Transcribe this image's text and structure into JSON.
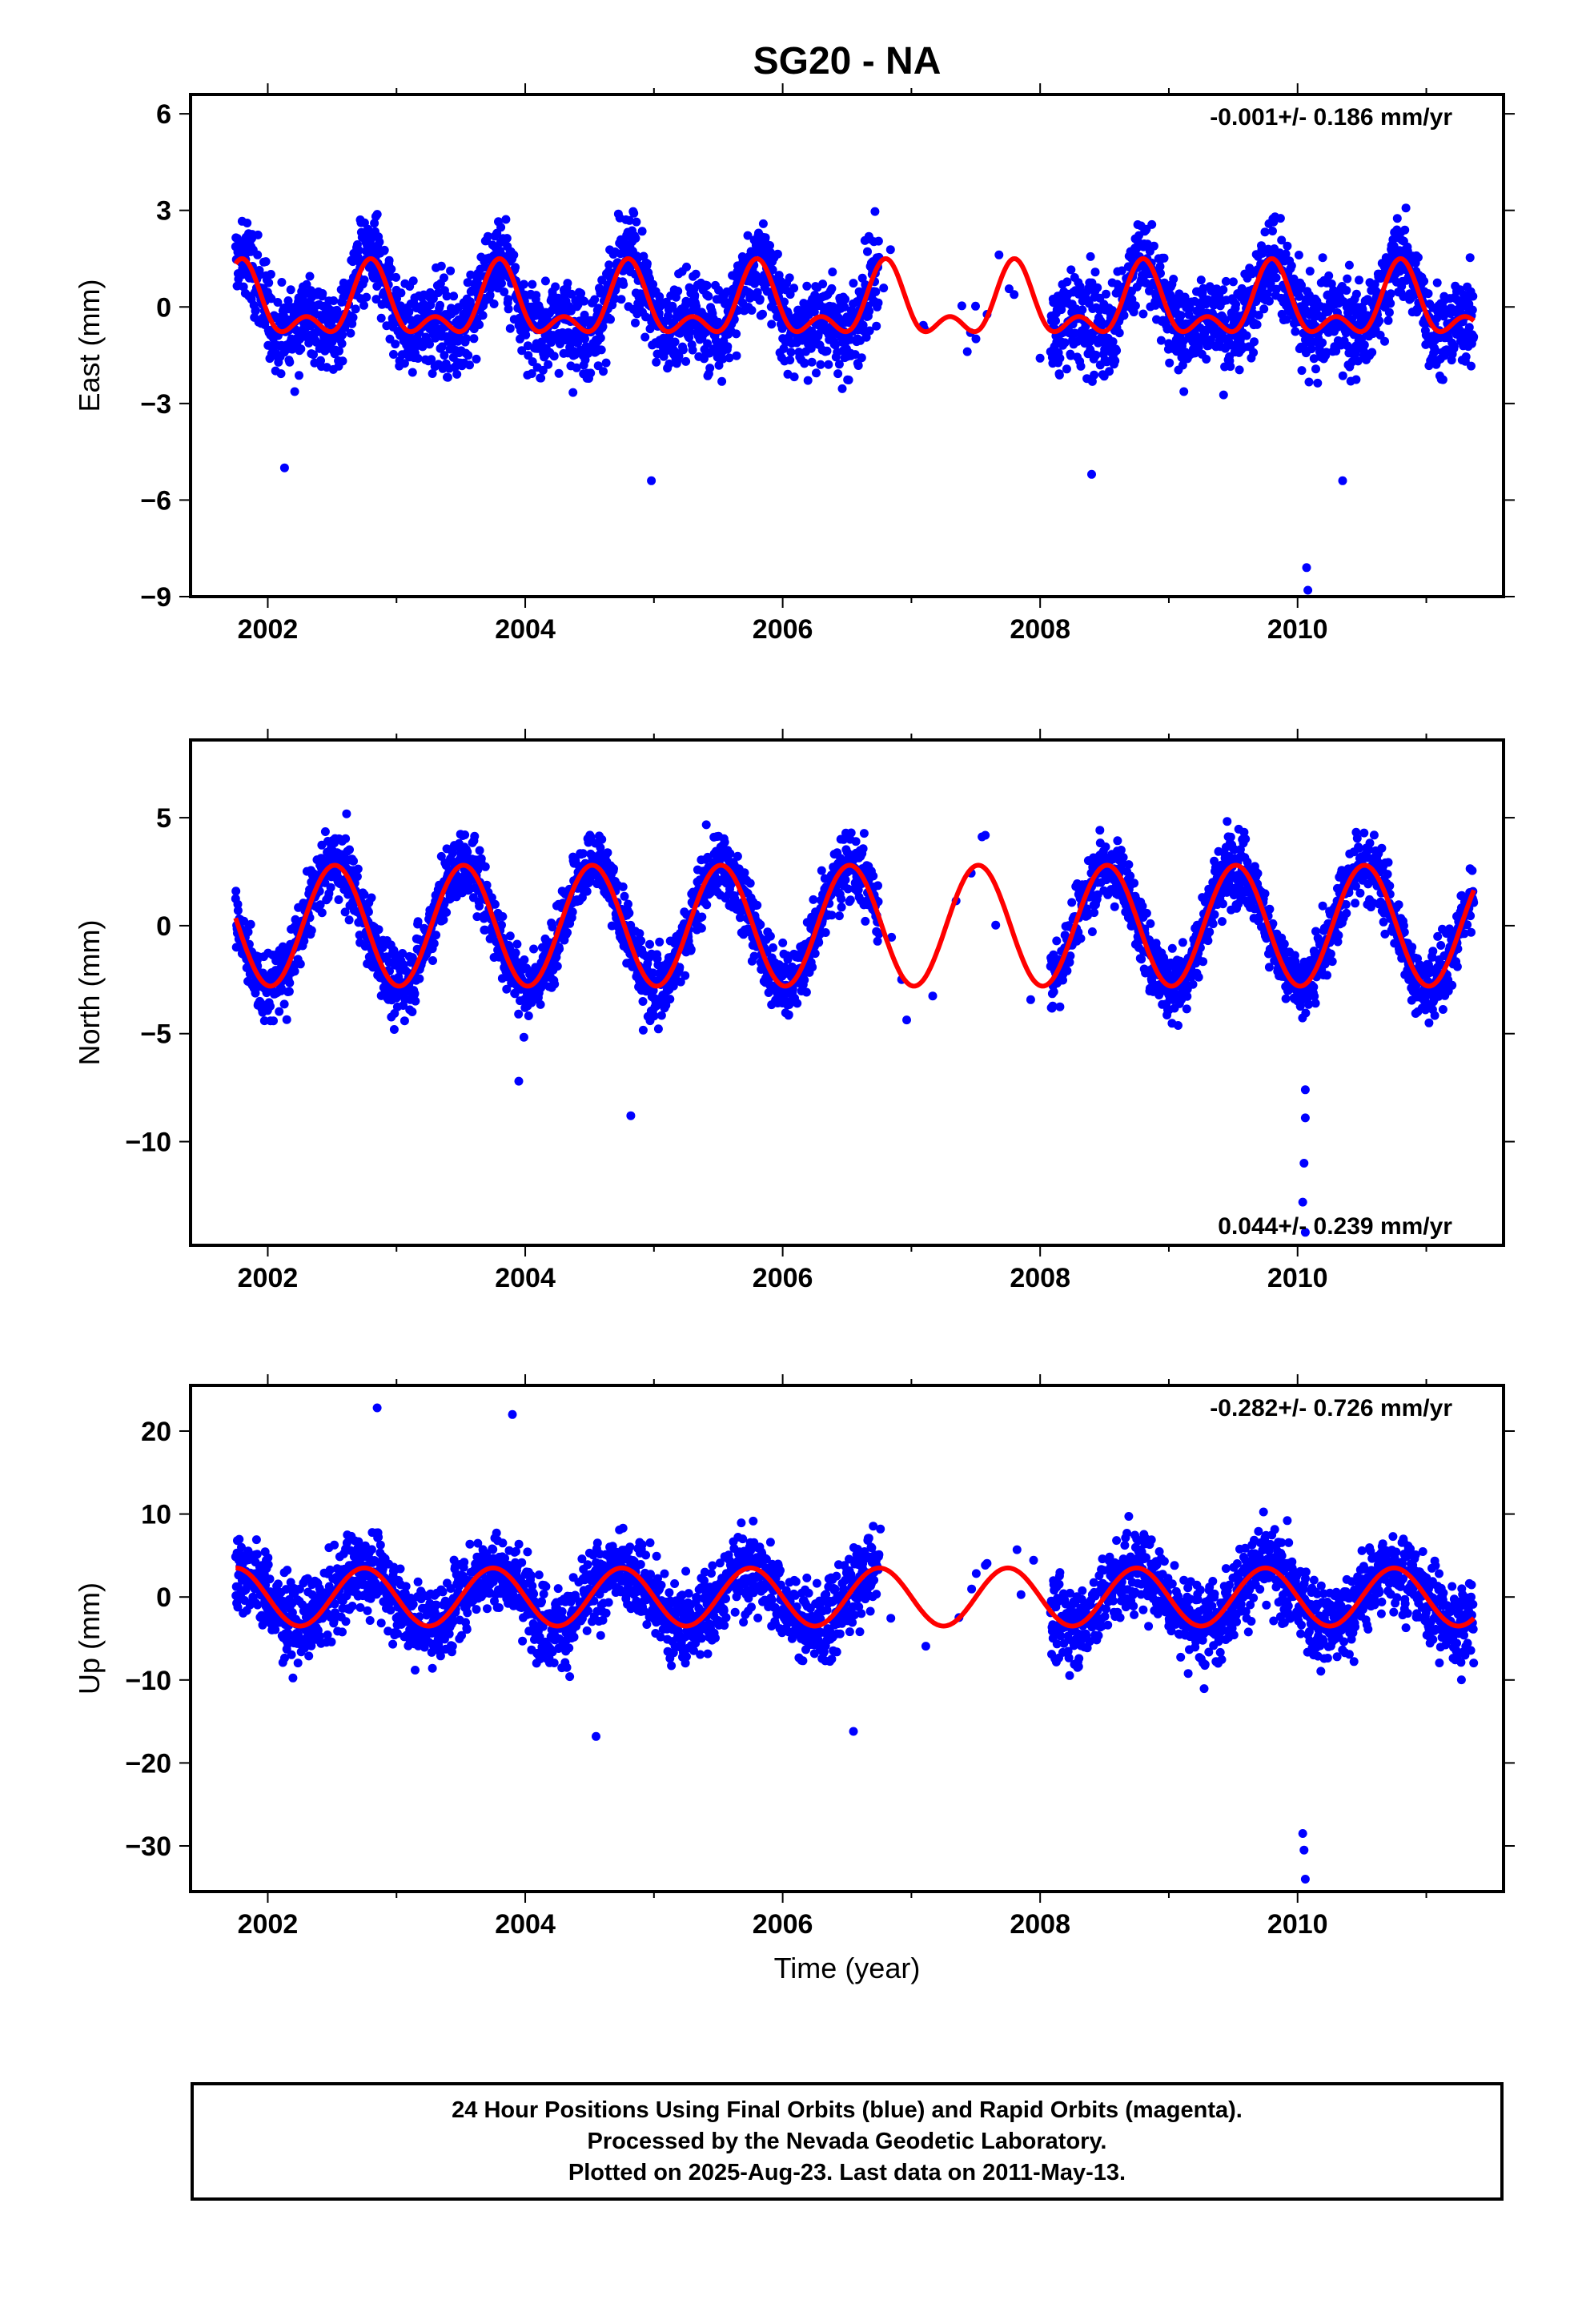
{
  "title": "SG20 - NA",
  "colors": {
    "data_points": "#0000ff",
    "model_curve": "#ff0000",
    "frame": "#000000"
  },
  "footer": {
    "line1": "24 Hour Positions Using Final Orbits (blue) and Rapid Orbits (magenta).",
    "line2": "Processed by the Nevada Geodetic Laboratory.",
    "line3": "Plotted on 2025-Aug-23. Last data on 2011-May-13."
  },
  "chart_data": [
    {
      "type": "scatter",
      "ylabel": "East (mm)",
      "xlabel": "",
      "xlim": [
        2001.4,
        2011.6
      ],
      "ylim": [
        -9,
        6.6
      ],
      "x_ticks": [
        2002,
        2004,
        2006,
        2008,
        2010
      ],
      "x_tick_labels": [
        "2002",
        "2004",
        "2006",
        "2008",
        "2010"
      ],
      "y_ticks": [
        6,
        3,
        0,
        -3,
        -6,
        -9
      ],
      "y_tick_labels": [
        "6",
        "3",
        "0",
        "−3",
        "−6",
        "−9"
      ],
      "rate_text": "-0.001+/- 0.186 mm/yr",
      "rate_position": "top-right",
      "data_range": [
        2001.75,
        2011.37
      ],
      "data_gap": [
        2006.75,
        2008.08
      ],
      "scatter_spread": 1.3,
      "annual_amplitude": 0.9,
      "semiannual_amplitude": 0.6,
      "model_peak_phase": 0.8,
      "outliers": [
        {
          "x": 2010.07,
          "y": -8.1
        },
        {
          "x": 2010.08,
          "y": -8.8
        },
        {
          "x": 2002.13,
          "y": -5.0
        },
        {
          "x": 2004.98,
          "y": -5.4
        },
        {
          "x": 2008.4,
          "y": -5.2
        },
        {
          "x": 2010.35,
          "y": -5.4
        }
      ]
    },
    {
      "type": "scatter",
      "ylabel": "North (mm)",
      "xlabel": "",
      "xlim": [
        2001.4,
        2011.6
      ],
      "ylim": [
        -14.8,
        8.6
      ],
      "x_ticks": [
        2002,
        2004,
        2006,
        2008,
        2010
      ],
      "x_tick_labels": [
        "2002",
        "2004",
        "2006",
        "2008",
        "2010"
      ],
      "y_ticks": [
        5,
        0,
        -5,
        -10
      ],
      "y_tick_labels": [
        "5",
        "0",
        "−5",
        "−10"
      ],
      "rate_text": "0.044+/- 0.239 mm/yr",
      "rate_position": "bottom-right",
      "data_range": [
        2001.75,
        2011.37
      ],
      "data_gap": [
        2006.75,
        2008.08
      ],
      "scatter_spread": 1.4,
      "annual_amplitude": 2.8,
      "semiannual_amplitude": 0.0,
      "model_peak_phase": 0.52,
      "outliers": [
        {
          "x": 2010.06,
          "y": -7.6
        },
        {
          "x": 2010.06,
          "y": -8.9
        },
        {
          "x": 2010.05,
          "y": -11.0
        },
        {
          "x": 2010.04,
          "y": -12.8
        },
        {
          "x": 2010.06,
          "y": -14.2
        },
        {
          "x": 2004.82,
          "y": -8.8
        },
        {
          "x": 2003.95,
          "y": -7.2
        }
      ]
    },
    {
      "type": "scatter",
      "ylabel": "Up (mm)",
      "xlabel": "Time (year)",
      "xlim": [
        2001.4,
        2011.6
      ],
      "ylim": [
        -35.5,
        25.5
      ],
      "x_ticks": [
        2002,
        2004,
        2006,
        2008,
        2010
      ],
      "x_tick_labels": [
        "2002",
        "2004",
        "2006",
        "2008",
        "2010"
      ],
      "y_ticks": [
        20,
        10,
        0,
        -10,
        -20,
        -30
      ],
      "y_tick_labels": [
        "20",
        "10",
        "0",
        "−10",
        "−20",
        "−30"
      ],
      "rate_text": "-0.282+/- 0.726 mm/yr",
      "rate_position": "top-right",
      "data_range": [
        2001.75,
        2011.37
      ],
      "data_gap": [
        2006.75,
        2008.08
      ],
      "scatter_spread": 4.5,
      "annual_amplitude": 3.5,
      "semiannual_amplitude": 0.0,
      "model_peak_phase": 0.75,
      "outliers": [
        {
          "x": 2010.04,
          "y": -28.5
        },
        {
          "x": 2010.05,
          "y": -30.5
        },
        {
          "x": 2010.06,
          "y": -34.0
        },
        {
          "x": 2002.85,
          "y": 22.8
        },
        {
          "x": 2003.9,
          "y": 22.0
        },
        {
          "x": 2004.55,
          "y": -16.8
        },
        {
          "x": 2006.55,
          "y": -16.2
        }
      ]
    }
  ]
}
